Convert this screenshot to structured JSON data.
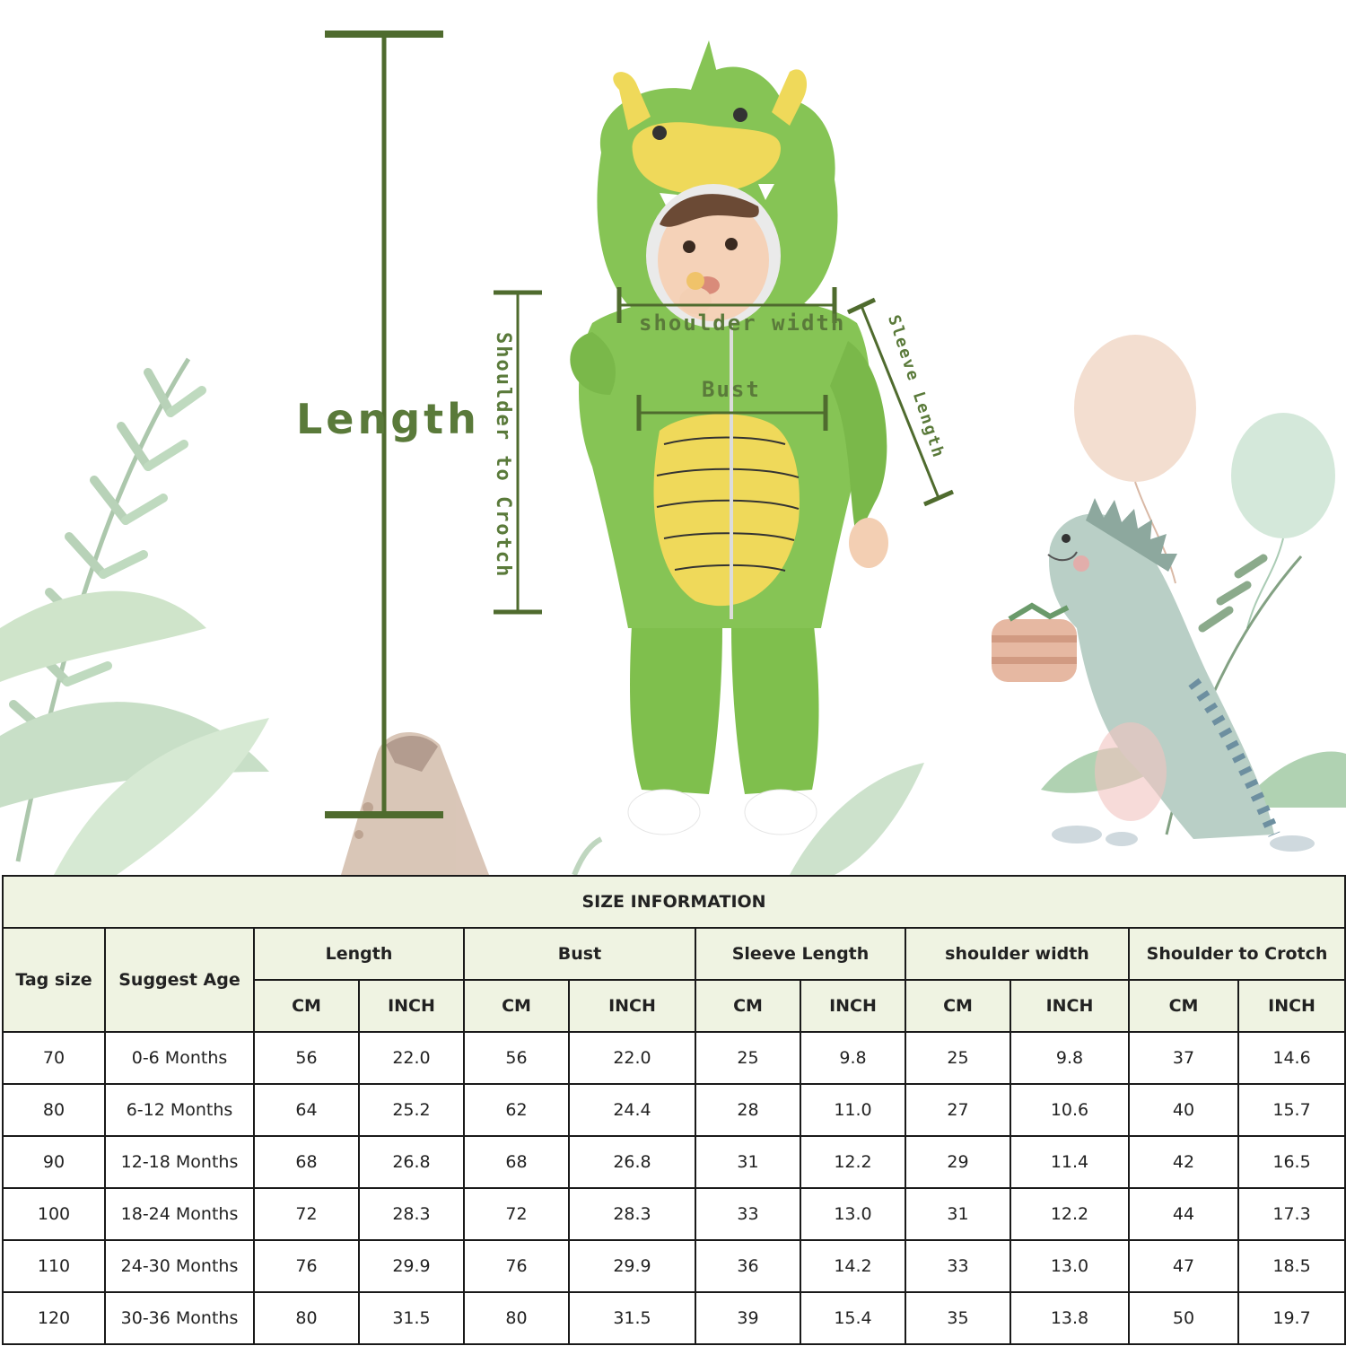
{
  "colors": {
    "accent_green": "#4f6b2e",
    "label_green": "#5a7a3a",
    "header_bg": "#eff3e2",
    "border": "#1a1a1a",
    "suit_green": "#7fbf4d",
    "belly_yellow": "#efd95a"
  },
  "measure_labels": {
    "length": "Length",
    "shoulder_to_crotch": "Shoulder to Crotch",
    "shoulder_width": "shoulder width",
    "bust": "Bust",
    "sleeve_length": "Sleeve Length"
  },
  "table": {
    "title": "SIZE INFORMATION",
    "col_tag": "Tag size",
    "col_age": "Suggest Age",
    "groups": [
      "Length",
      "Bust",
      "Sleeve Length",
      "shoulder width",
      "Shoulder to Crotch"
    ],
    "unit_cm": "CM",
    "unit_inch": "INCH",
    "rows": [
      [
        "70",
        "0-6 Months",
        "56",
        "22.0",
        "56",
        "22.0",
        "25",
        "9.8",
        "25",
        "9.8",
        "37",
        "14.6"
      ],
      [
        "80",
        "6-12 Months",
        "64",
        "25.2",
        "62",
        "24.4",
        "28",
        "11.0",
        "27",
        "10.6",
        "40",
        "15.7"
      ],
      [
        "90",
        "12-18 Months",
        "68",
        "26.8",
        "68",
        "26.8",
        "31",
        "12.2",
        "29",
        "11.4",
        "42",
        "16.5"
      ],
      [
        "100",
        "18-24 Months",
        "72",
        "28.3",
        "72",
        "28.3",
        "33",
        "13.0",
        "31",
        "12.2",
        "44",
        "17.3"
      ],
      [
        "110",
        "24-30 Months",
        "76",
        "29.9",
        "76",
        "29.9",
        "36",
        "14.2",
        "33",
        "13.0",
        "47",
        "18.5"
      ],
      [
        "120",
        "30-36 Months",
        "80",
        "31.5",
        "80",
        "31.5",
        "39",
        "15.4",
        "35",
        "13.8",
        "50",
        "19.7"
      ]
    ]
  }
}
